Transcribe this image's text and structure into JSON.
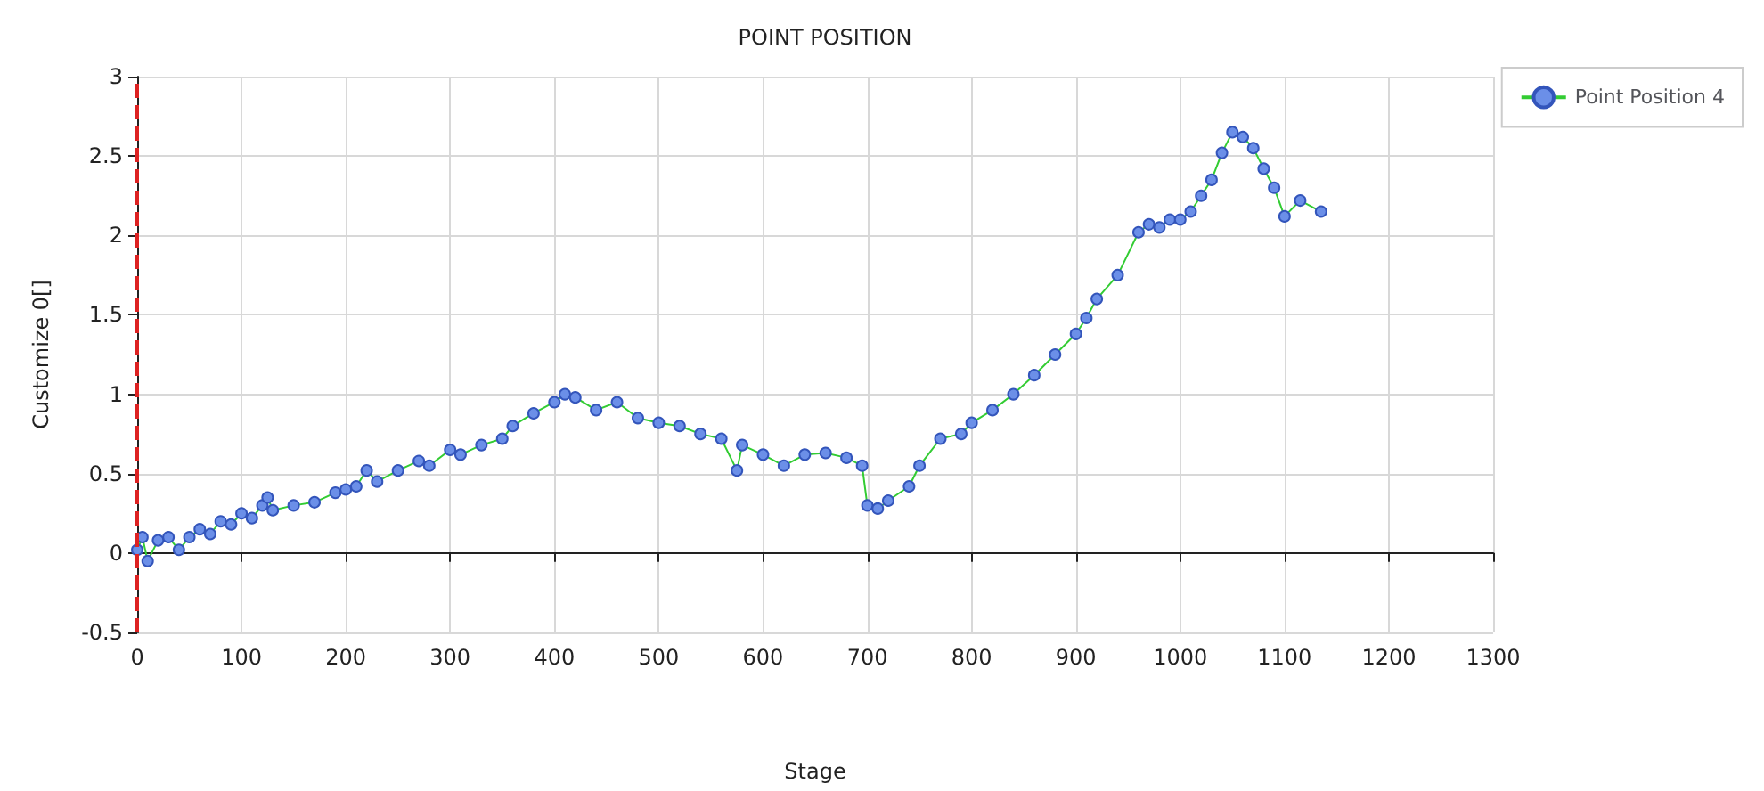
{
  "chart_data": {
    "type": "line",
    "title": "POINT POSITION",
    "xlabel": "Stage",
    "ylabel": "Customize 0[]",
    "series": [
      {
        "name": "Point Position 4",
        "color": "#33cc33",
        "x": [
          0,
          5,
          10,
          20,
          30,
          40,
          50,
          60,
          70,
          80,
          90,
          100,
          110,
          120,
          125,
          130,
          150,
          170,
          190,
          200,
          210,
          220,
          230,
          250,
          270,
          280,
          300,
          310,
          330,
          350,
          360,
          380,
          400,
          410,
          420,
          440,
          460,
          480,
          500,
          520,
          540,
          560,
          575,
          580,
          600,
          620,
          640,
          660,
          680,
          695,
          700,
          710,
          720,
          740,
          750,
          770,
          790,
          800,
          820,
          840,
          860,
          880,
          900,
          910,
          920,
          940,
          960,
          970,
          980,
          990,
          1000,
          1010,
          1020,
          1030,
          1040,
          1050,
          1060,
          1070,
          1080,
          1090,
          1100,
          1115,
          1135
        ],
        "values": [
          0.02,
          0.1,
          -0.05,
          0.08,
          0.1,
          0.02,
          0.1,
          0.15,
          0.12,
          0.2,
          0.18,
          0.25,
          0.22,
          0.3,
          0.35,
          0.27,
          0.3,
          0.32,
          0.38,
          0.4,
          0.42,
          0.52,
          0.45,
          0.52,
          0.58,
          0.55,
          0.65,
          0.62,
          0.68,
          0.72,
          0.8,
          0.88,
          0.95,
          1.0,
          0.98,
          0.9,
          0.95,
          0.85,
          0.82,
          0.8,
          0.75,
          0.72,
          0.52,
          0.68,
          0.62,
          0.55,
          0.62,
          0.63,
          0.6,
          0.55,
          0.3,
          0.28,
          0.33,
          0.42,
          0.55,
          0.72,
          0.75,
          0.82,
          0.9,
          1.0,
          1.12,
          1.25,
          1.38,
          1.48,
          1.6,
          1.75,
          2.02,
          2.07,
          2.05,
          2.1,
          2.1,
          2.15,
          2.25,
          2.35,
          2.52,
          2.65,
          2.62,
          2.55,
          2.42,
          2.3,
          2.12,
          2.22,
          2.15
        ]
      }
    ],
    "xlim": [
      0,
      1300
    ],
    "xticks": [
      0,
      100,
      200,
      300,
      400,
      500,
      600,
      700,
      800,
      900,
      1000,
      1100,
      1200,
      1300
    ],
    "ylim": [
      -0.5,
      3
    ],
    "yticks": [
      -0.5,
      0,
      0.5,
      1,
      1.5,
      2,
      2.5,
      3
    ],
    "grid": true,
    "legend": "top right",
    "marker": "circle",
    "line_style": "solid",
    "ref_lines": [
      {
        "axis": "x",
        "value": 0,
        "color": "#dd2222",
        "line_style": "dashed"
      }
    ]
  }
}
